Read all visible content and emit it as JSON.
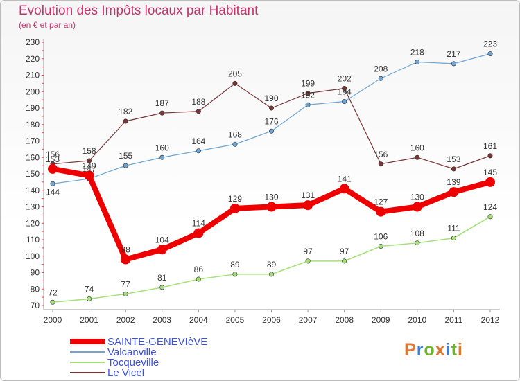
{
  "header": {
    "title": "Evolution des Impôts locaux par Habitant",
    "subtitle": "(en € et par an)"
  },
  "logo": {
    "text": "Proxiti",
    "colors": [
      "#e2762f",
      "#3a7fd6",
      "#6bb52a",
      "#e2762f",
      "#3a7fd6",
      "#6bb52a",
      "#e2762f"
    ]
  },
  "chart_data": {
    "type": "line",
    "title": "Evolution des Impôts locaux par Habitant",
    "subtitle": "(en € et par an)",
    "x": [
      "2000",
      "2001",
      "2002",
      "2003",
      "2004",
      "2005",
      "2006",
      "2007",
      "2008",
      "2009",
      "2010",
      "2011",
      "2012"
    ],
    "ylim": [
      70,
      230
    ],
    "yticks": [
      70,
      80,
      90,
      100,
      110,
      120,
      130,
      140,
      150,
      160,
      170,
      180,
      190,
      200,
      210,
      220,
      230
    ],
    "grid": false,
    "legend_position": "bottom-left",
    "series": [
      {
        "name": "SAINTE-GENEVIèVE",
        "color": "#ee0000",
        "width": 8,
        "marker": 7,
        "values": [
          153,
          149,
          98,
          104,
          114,
          129,
          130,
          131,
          141,
          127,
          130,
          139,
          145
        ]
      },
      {
        "name": "Valcanville",
        "color": "#6fa6d4",
        "width": 1.2,
        "marker": 3.2,
        "values": [
          144,
          147,
          155,
          160,
          164,
          168,
          176,
          192,
          194,
          208,
          218,
          217,
          223
        ]
      },
      {
        "name": "Tocqueville",
        "color": "#a6e07b",
        "width": 1.6,
        "marker": 3.2,
        "values": [
          72,
          74,
          77,
          81,
          86,
          89,
          89,
          97,
          97,
          106,
          108,
          111,
          124
        ]
      },
      {
        "name": "Le Vicel",
        "color": "#7a3535",
        "width": 1.2,
        "marker": 3.2,
        "values": [
          156,
          158,
          182,
          187,
          188,
          205,
          190,
          199,
          202,
          156,
          160,
          153,
          161
        ]
      }
    ]
  }
}
